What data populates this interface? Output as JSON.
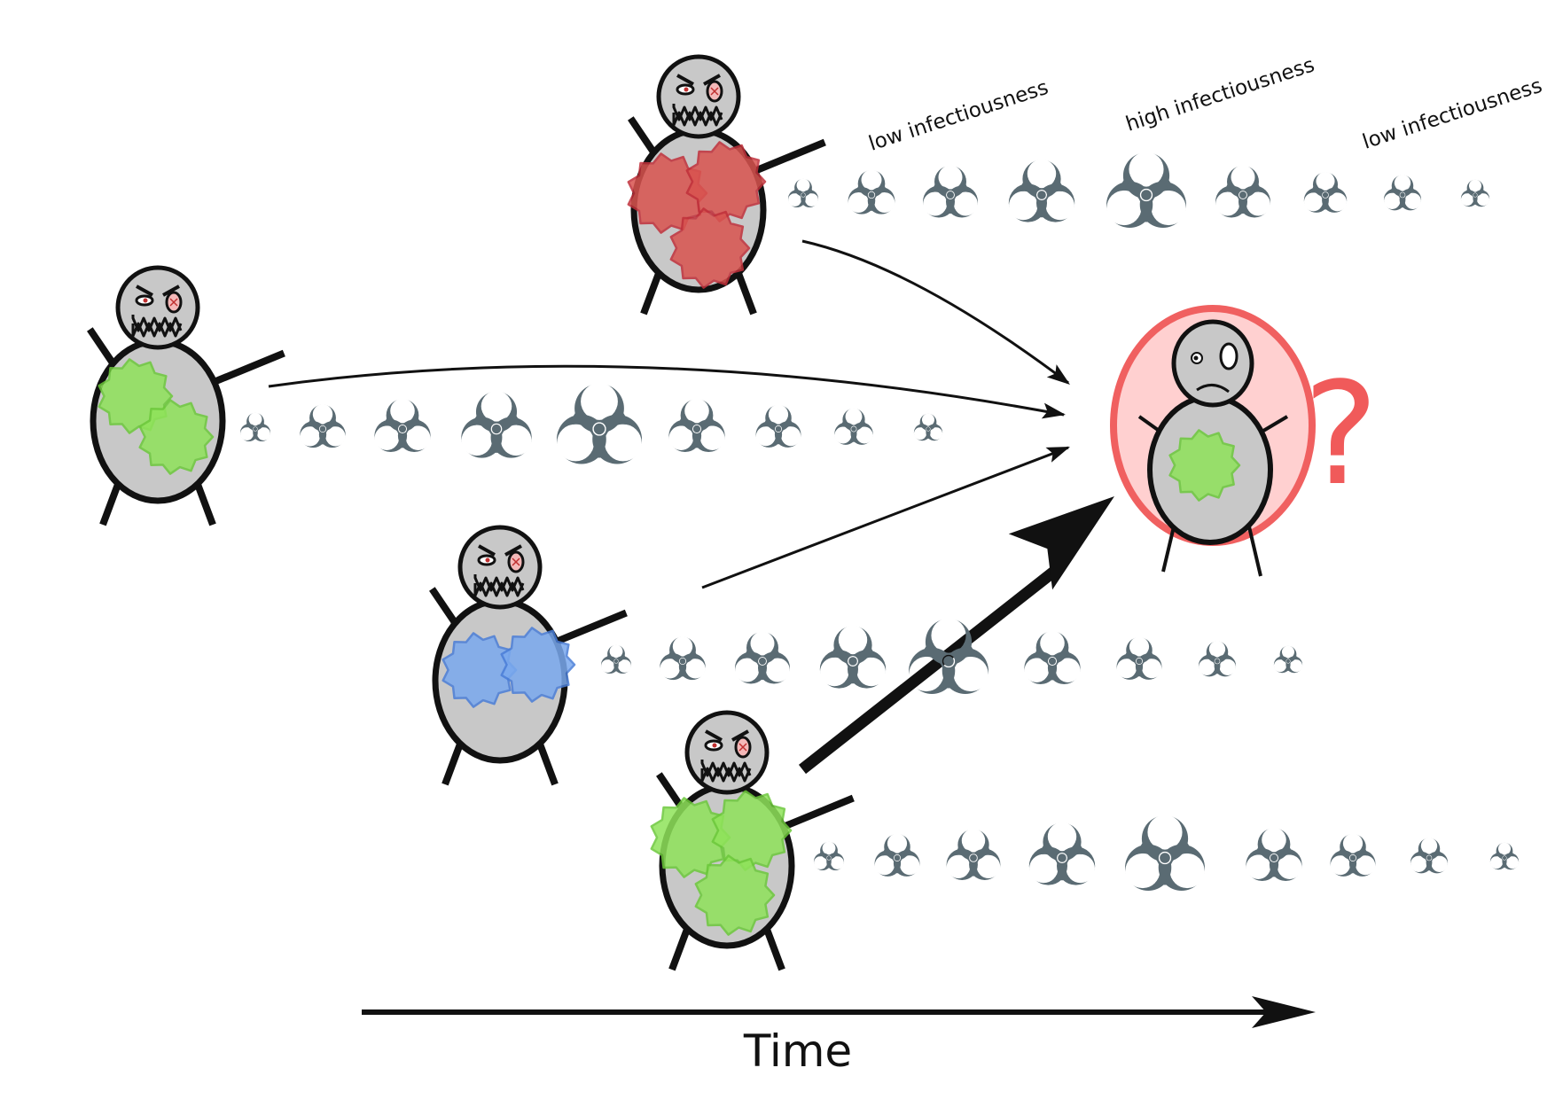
{
  "labels": {
    "low_1": "low infectiousness",
    "high": "high infectiousness",
    "low_2": "low infectiousness",
    "time": "Time",
    "question": "?"
  },
  "colors": {
    "virus_red": "#d9534f",
    "virus_green": "#8fe35a",
    "virus_blue": "#7aa9ee",
    "body_gray": "#c8c8c8",
    "biohazard": "#5a6b73",
    "target_ring": "#f06060",
    "target_fill": "#ffd0d0",
    "question_mark": "#f05a5a"
  },
  "icons": {
    "infector": "infected-person-icon",
    "target": "susceptible-person-icon",
    "infectiousness": "biohazard-icon"
  },
  "infectors": [
    {
      "name": "infector-red",
      "virus_color": "red",
      "virus_count": 3,
      "transmission": "thin"
    },
    {
      "name": "infector-green-left",
      "virus_color": "green",
      "virus_count": 2,
      "transmission": "thin"
    },
    {
      "name": "infector-blue",
      "virus_color": "blue",
      "virus_count": 2,
      "transmission": "thin"
    },
    {
      "name": "infector-green-bottom",
      "virus_color": "green",
      "virus_count": 3,
      "transmission": "thick"
    }
  ],
  "target": {
    "name": "susceptible-person",
    "virus_color": "green",
    "virus_count": 1
  }
}
